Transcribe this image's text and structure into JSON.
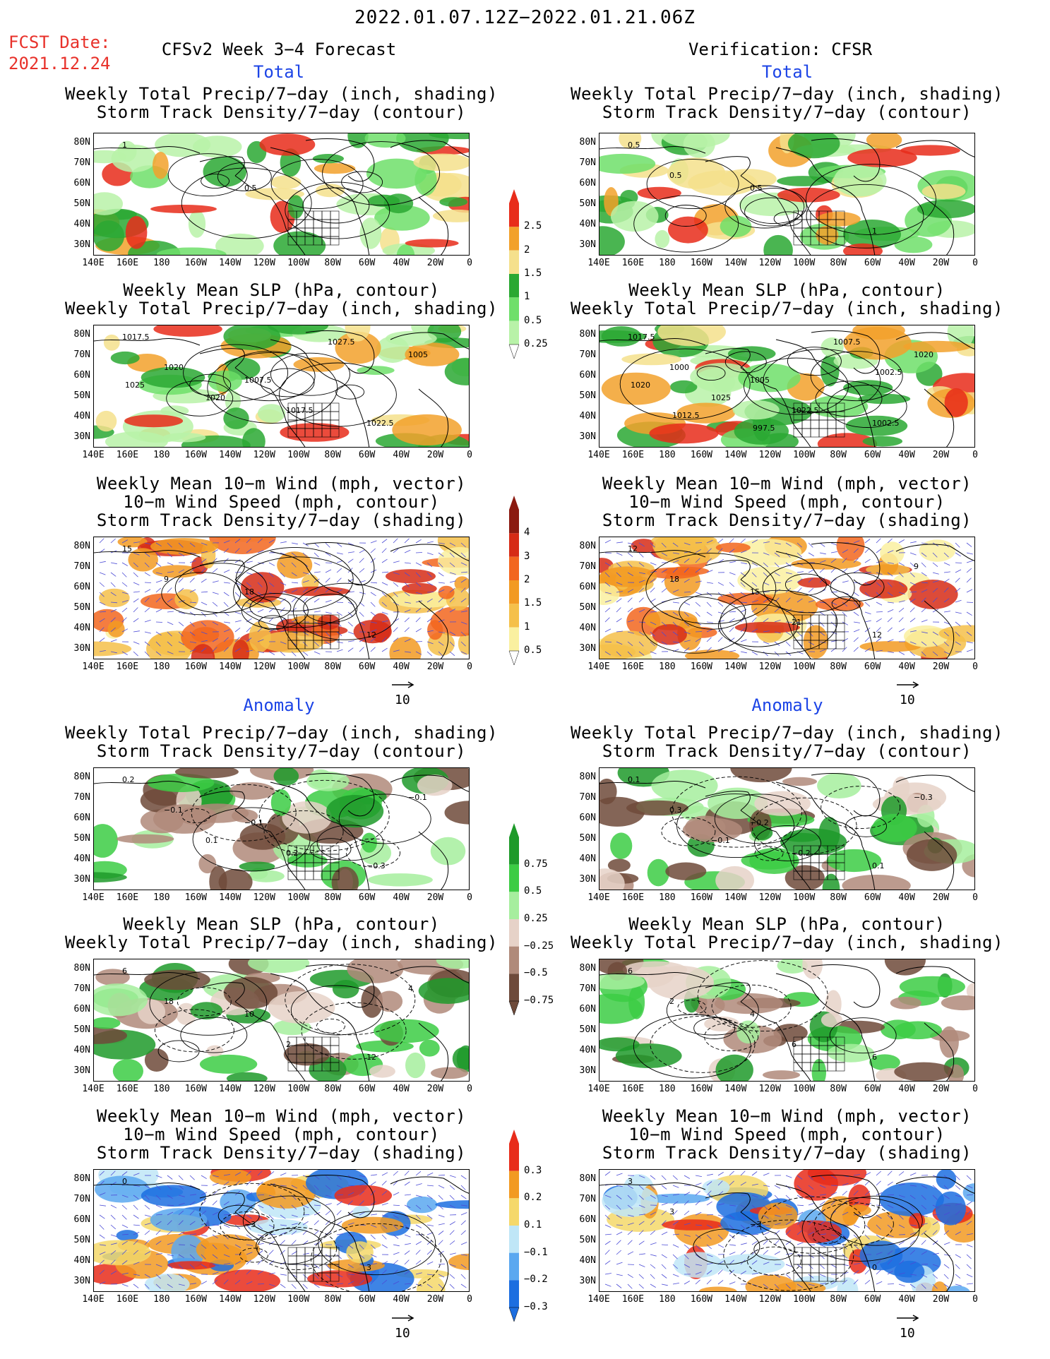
{
  "header": {
    "date_range": "2022.01.07.12Z−2022.01.21.06Z",
    "fcst_label": "FCST Date:",
    "fcst_date": "2021.12.24",
    "left_model": "CFSv2 Week 3−4 Forecast",
    "right_model": "Verification: CFSR"
  },
  "sections": {
    "total": "Total",
    "anomaly": "Anomaly"
  },
  "panel_titles": {
    "precip_storm": [
      "Weekly Total Precip/7−day (inch, shading)",
      "Storm Track Density/7−day (contour)"
    ],
    "slp_precip": [
      "Weekly Mean SLP (hPa, contour)",
      "Weekly Total Precip/7−day (inch, shading)"
    ],
    "wind_storm": [
      "Weekly Mean 10−m Wind (mph, vector)",
      "10−m Wind Speed (mph, contour)",
      "Storm Track Density/7−day (shading)"
    ]
  },
  "axes": {
    "lat_labels": [
      "80N",
      "70N",
      "60N",
      "50N",
      "40N",
      "30N"
    ],
    "lon_labels": [
      "140E",
      "160E",
      "180",
      "160W",
      "140W",
      "120W",
      "100W",
      "80W",
      "60W",
      "40W",
      "20W",
      "0"
    ]
  },
  "colorbars": {
    "precip_total": {
      "labels": [
        "2.5",
        "2",
        "1.5",
        "1",
        "0.5",
        "0.25"
      ],
      "colors": [
        "#e82c1a",
        "#f2a12b",
        "#f5e08c",
        "#2aa832",
        "#6fdf6a",
        "#b8f2a8"
      ]
    },
    "storm_total": {
      "labels": [
        "4",
        "3",
        "2",
        "1.5",
        "1",
        "0.5"
      ],
      "colors": [
        "#8b1a10",
        "#d62b16",
        "#f2661f",
        "#f29a22",
        "#f5c04a",
        "#faf0a0"
      ]
    },
    "precip_anom": {
      "labels": [
        "0.75",
        "0.5",
        "0.25",
        "−0.25",
        "−0.5",
        "−0.75"
      ],
      "colors": [
        "#1e9a2a",
        "#3ccc44",
        "#a6ee9e",
        "#e6d2c8",
        "#b08a7a",
        "#6e4a3a"
      ]
    },
    "storm_anom": {
      "labels": [
        "0.3",
        "0.2",
        "0.1",
        "−0.1",
        "−0.2",
        "−0.3"
      ],
      "colors": [
        "#e82c1a",
        "#f29a22",
        "#f5d86a",
        "#bfe6f7",
        "#5aa8f0",
        "#1c6ee0"
      ]
    }
  },
  "vector_reference": "10",
  "contour_labels": {
    "p1l": [
      "1",
      "0.5"
    ],
    "p1r": [
      "0.5",
      "0.5",
      "1",
      "0.5"
    ],
    "p2l": [
      "1017.5",
      "1007.5",
      "1022.5",
      "1020",
      "1017.5",
      "1005",
      "1020",
      "1027.5",
      "1025"
    ],
    "p2r": [
      "1017.5",
      "1005",
      "1002.5",
      "1000",
      "1022.5",
      "1020",
      "1025",
      "1007.5",
      "1020",
      "997.5",
      "1002.5",
      "1012.5"
    ],
    "p3l": [
      "15",
      "18",
      "12",
      "9"
    ],
    "p3r": [
      "12",
      "15",
      "12",
      "18",
      "21",
      "9"
    ],
    "p4l": [
      "0.2",
      "−0.1",
      "−0.3",
      "−0.1",
      "0.2",
      "−0.1",
      "0.1"
    ],
    "p4r": [
      "0.1",
      "−0.2",
      "0.1",
      "0.3",
      "−0.2",
      "−0.3",
      "−0.1"
    ],
    "p5l": [
      "6",
      "10",
      "12",
      "18",
      "2",
      "4"
    ],
    "p5r": [
      "6",
      "4",
      "6",
      "2",
      "6"
    ],
    "p6l": [
      "0",
      "−3",
      "3"
    ],
    "p6r": [
      "3",
      "−3",
      "0",
      "3"
    ]
  }
}
